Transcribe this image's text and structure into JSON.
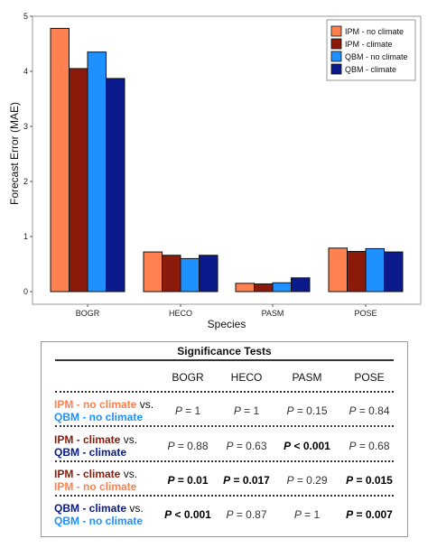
{
  "colors": {
    "ipm_no_climate": "#FF8050",
    "ipm_climate": "#8B1A0A",
    "qbm_no_climate": "#1E90FF",
    "qbm_climate": "#0A1A8A"
  },
  "chart_data": {
    "type": "bar",
    "categories": [
      "BOGR",
      "HECO",
      "PASM",
      "POSE"
    ],
    "series": [
      {
        "name": "IPM - no climate",
        "color": "#FF8050",
        "values": [
          4.78,
          0.72,
          0.15,
          0.79
        ]
      },
      {
        "name": "IPM - climate",
        "color": "#8B1A0A",
        "values": [
          4.05,
          0.66,
          0.14,
          0.73
        ]
      },
      {
        "name": "QBM - no climate",
        "color": "#1E90FF",
        "values": [
          4.35,
          0.6,
          0.16,
          0.78
        ]
      },
      {
        "name": "QBM - climate",
        "color": "#0A1A8A",
        "values": [
          3.87,
          0.66,
          0.25,
          0.72
        ]
      }
    ],
    "xlabel": "Species",
    "ylabel": "Forecast Error (MAE)",
    "ylim": [
      0,
      5
    ],
    "yticks": [
      0,
      1,
      2,
      3,
      4,
      5
    ],
    "legend": "top-right",
    "grid": false
  },
  "significance": {
    "title": "Significance Tests",
    "columns": [
      "BOGR",
      "HECO",
      "PASM",
      "POSE"
    ],
    "rows": [
      {
        "label_a": "IPM - no climate",
        "color_a": "#FF8050",
        "vs": "vs.",
        "label_b": "QBM - no climate",
        "color_b": "#1E90FF",
        "cells": [
          {
            "p": "P",
            "text": " = 1",
            "bold": false
          },
          {
            "p": "P",
            "text": " = 1",
            "bold": false
          },
          {
            "p": "P",
            "text": " = 0.15",
            "bold": false
          },
          {
            "p": "P",
            "text": " = 0.84",
            "bold": false
          }
        ]
      },
      {
        "label_a": "IPM - climate",
        "color_a": "#8B1A0A",
        "vs": "vs.",
        "label_b": "QBM - climate",
        "color_b": "#0A1A8A",
        "cells": [
          {
            "p": "P",
            "text": " = 0.88",
            "bold": false
          },
          {
            "p": "P",
            "text": " = 0.63",
            "bold": false
          },
          {
            "p": "P",
            "text": " < 0.001",
            "bold": true
          },
          {
            "p": "P",
            "text": " = 0.68",
            "bold": false
          }
        ]
      },
      {
        "label_a": "IPM - climate",
        "color_a": "#8B1A0A",
        "vs": "vs.",
        "label_b": "IPM - no climate",
        "color_b": "#FF8050",
        "cells": [
          {
            "p": "P",
            "text": " = 0.01",
            "bold": true
          },
          {
            "p": "P",
            "text": " = 0.017",
            "bold": true
          },
          {
            "p": "P",
            "text": " = 0.29",
            "bold": false
          },
          {
            "p": "P",
            "text": " = 0.015",
            "bold": true
          }
        ]
      },
      {
        "label_a": "QBM - climate",
        "color_a": "#0A1A8A",
        "vs": "vs.",
        "label_b": "QBM - no climate",
        "color_b": "#1E90FF",
        "cells": [
          {
            "p": "P",
            "text": " < 0.001",
            "bold": true
          },
          {
            "p": "P",
            "text": " = 0.87",
            "bold": false
          },
          {
            "p": "P",
            "text": " = 1",
            "bold": false
          },
          {
            "p": "P",
            "text": " = 0.007",
            "bold": true
          }
        ]
      }
    ]
  }
}
